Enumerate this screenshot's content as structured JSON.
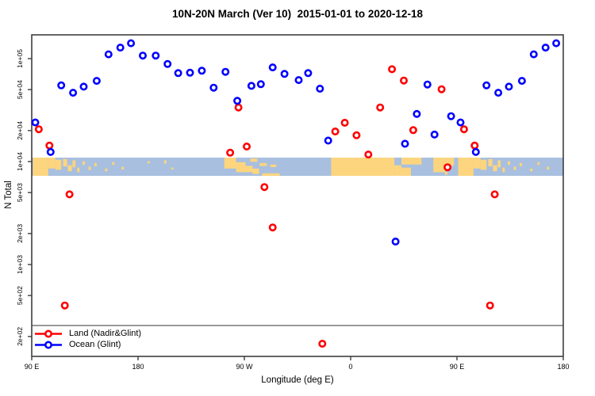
{
  "title": "10N-20N March (Ver 10)  2015-01-01 to 2020-12-18",
  "colors": {
    "land_series": "#ff0000",
    "ocean_series": "#0000ff",
    "map_ocean": "#a8bfdf",
    "map_land": "#fcd57e",
    "frame": "#3f3f3f",
    "legend_line": "#999999",
    "tick_text": "#000000"
  },
  "legend": {
    "items": [
      {
        "label": "Land (Nadir&Glint)",
        "color": "#ff0000"
      },
      {
        "label": "Ocean (Glint)",
        "color": "#0000ff"
      }
    ]
  },
  "chart_data": {
    "type": "scatter",
    "title": "10N-20N March (Ver 10)  2015-01-01 to 2020-12-18",
    "xlabel": "Longitude (deg E)",
    "ylabel": "N Total",
    "x_axis": {
      "domain_deg": [
        90,
        540
      ],
      "wrap_note": "longitudes 90E-180E are plotted twice (axis wraps 90E..180..90W..0..90E..180)",
      "ticks": [
        {
          "deg": 90,
          "label": "90 E"
        },
        {
          "deg": 180,
          "label": "180"
        },
        {
          "deg": 270,
          "label": "90 W"
        },
        {
          "deg": 360,
          "label": "0"
        },
        {
          "deg": 450,
          "label": "90 E"
        },
        {
          "deg": 540,
          "label": "180"
        }
      ]
    },
    "y_axis": {
      "scale": "log10",
      "range": [
        130,
        167000
      ],
      "ticks": [
        {
          "value": 100000,
          "label": "1e+05"
        },
        {
          "value": 50000,
          "label": "5e+04"
        },
        {
          "value": 20000,
          "label": "2e+04"
        },
        {
          "value": 10000,
          "label": "1e+04"
        },
        {
          "value": 5000,
          "label": "5e+03"
        },
        {
          "value": 2000,
          "label": "2e+03"
        },
        {
          "value": 1000,
          "label": "1e+03"
        },
        {
          "value": 500,
          "label": "5e+02"
        },
        {
          "value": 200,
          "label": "2e+02"
        }
      ]
    },
    "series": [
      {
        "name": "Land (Nadir&Glint)",
        "color": "#ff0000",
        "points": [
          {
            "lon": -102,
            "n": 12200
          },
          {
            "lon": -95,
            "n": 33500
          },
          {
            "lon": -88,
            "n": 14000
          },
          {
            "lon": -73,
            "n": 5650
          },
          {
            "lon": -66,
            "n": 2290
          },
          {
            "lon": -24,
            "n": 170
          },
          {
            "lon": -13,
            "n": 19600
          },
          {
            "lon": -5,
            "n": 23800
          },
          {
            "lon": 5,
            "n": 18000
          },
          {
            "lon": 15,
            "n": 11700
          },
          {
            "lon": 25,
            "n": 33500
          },
          {
            "lon": 35,
            "n": 78900
          },
          {
            "lon": 45,
            "n": 61200
          },
          {
            "lon": 53,
            "n": 20200
          },
          {
            "lon": 77,
            "n": 50400
          },
          {
            "lon": 82,
            "n": 8800
          },
          {
            "lon": 96,
            "n": 20600
          },
          {
            "lon": 105,
            "n": 14300
          },
          {
            "lon": 118,
            "n": 400
          },
          {
            "lon": 122,
            "n": 4800
          }
        ]
      },
      {
        "name": "Ocean (Glint)",
        "color": "#0000ff",
        "points": [
          {
            "lon": -176,
            "n": 107000
          },
          {
            "lon": -165,
            "n": 107000
          },
          {
            "lon": -155,
            "n": 88700
          },
          {
            "lon": -146,
            "n": 72300
          },
          {
            "lon": -136,
            "n": 73000
          },
          {
            "lon": -126,
            "n": 76200
          },
          {
            "lon": -116,
            "n": 52200
          },
          {
            "lon": -106,
            "n": 74400
          },
          {
            "lon": -96,
            "n": 38900
          },
          {
            "lon": -84,
            "n": 54400
          },
          {
            "lon": -76,
            "n": 56400
          },
          {
            "lon": -66,
            "n": 82200
          },
          {
            "lon": -56,
            "n": 71100
          },
          {
            "lon": -44,
            "n": 61900
          },
          {
            "lon": -36,
            "n": 72300
          },
          {
            "lon": -26,
            "n": 51000
          },
          {
            "lon": -19,
            "n": 16000
          },
          {
            "lon": 38,
            "n": 1670
          },
          {
            "lon": 46,
            "n": 14900
          },
          {
            "lon": 56,
            "n": 29000
          },
          {
            "lon": 65,
            "n": 56000
          },
          {
            "lon": 71,
            "n": 18300
          },
          {
            "lon": 85,
            "n": 27600
          },
          {
            "lon": 93,
            "n": 24000
          },
          {
            "lon": 106,
            "n": 12400
          },
          {
            "lon": 115,
            "n": 55000
          },
          {
            "lon": 125,
            "n": 46600
          },
          {
            "lon": 134,
            "n": 53400
          },
          {
            "lon": 145,
            "n": 60800
          },
          {
            "lon": 155,
            "n": 110000
          },
          {
            "lon": 165,
            "n": 128000
          },
          {
            "lon": 174,
            "n": 141000
          }
        ]
      }
    ]
  },
  "map_band": {
    "description": "10N-20N world-map strip centered on 1e+04",
    "land_patches": [
      [
        91,
        104,
        0.0,
        1.0
      ],
      [
        104,
        110,
        0.0,
        0.6
      ],
      [
        110,
        115,
        0.12,
        0.55
      ],
      [
        116.5,
        120,
        0.08,
        0.4
      ],
      [
        120.5,
        124,
        0.42,
        0.33
      ],
      [
        124.5,
        127,
        0.15,
        0.38
      ],
      [
        128.5,
        130.5,
        0.55,
        0.25
      ],
      [
        133,
        135,
        0.2,
        0.2
      ],
      [
        138,
        140,
        0.5,
        0.18
      ],
      [
        143,
        145,
        0.3,
        0.18
      ],
      [
        152,
        154,
        0.6,
        0.15
      ],
      [
        158,
        160,
        0.25,
        0.15
      ],
      [
        166,
        168,
        0.5,
        0.15
      ],
      [
        -172,
        -170,
        0.2,
        0.12
      ],
      [
        -158,
        -156,
        0.15,
        0.18
      ],
      [
        -152,
        -150,
        0.55,
        0.1
      ],
      [
        -107,
        -97,
        0.0,
        0.6
      ],
      [
        -97,
        -89,
        0.25,
        0.55
      ],
      [
        -89,
        -83,
        0.45,
        0.35
      ],
      [
        -83,
        -77.5,
        0.6,
        0.3
      ],
      [
        -85,
        -79,
        0.05,
        0.18
      ],
      [
        -77,
        -71,
        0.3,
        0.16
      ],
      [
        -68,
        -63,
        0.38,
        0.14
      ],
      [
        -75,
        -60,
        0.86,
        0.14
      ],
      [
        -16.5,
        37,
        0.0,
        1.0
      ],
      [
        37,
        43,
        0.42,
        0.58
      ],
      [
        43,
        51,
        0.55,
        0.45
      ],
      [
        43,
        60,
        0.0,
        0.38
      ],
      [
        70,
        80,
        0.0,
        0.8
      ],
      [
        80,
        87.5,
        0.0,
        0.45
      ],
      [
        79.8,
        82,
        0.78,
        0.16
      ]
    ]
  }
}
